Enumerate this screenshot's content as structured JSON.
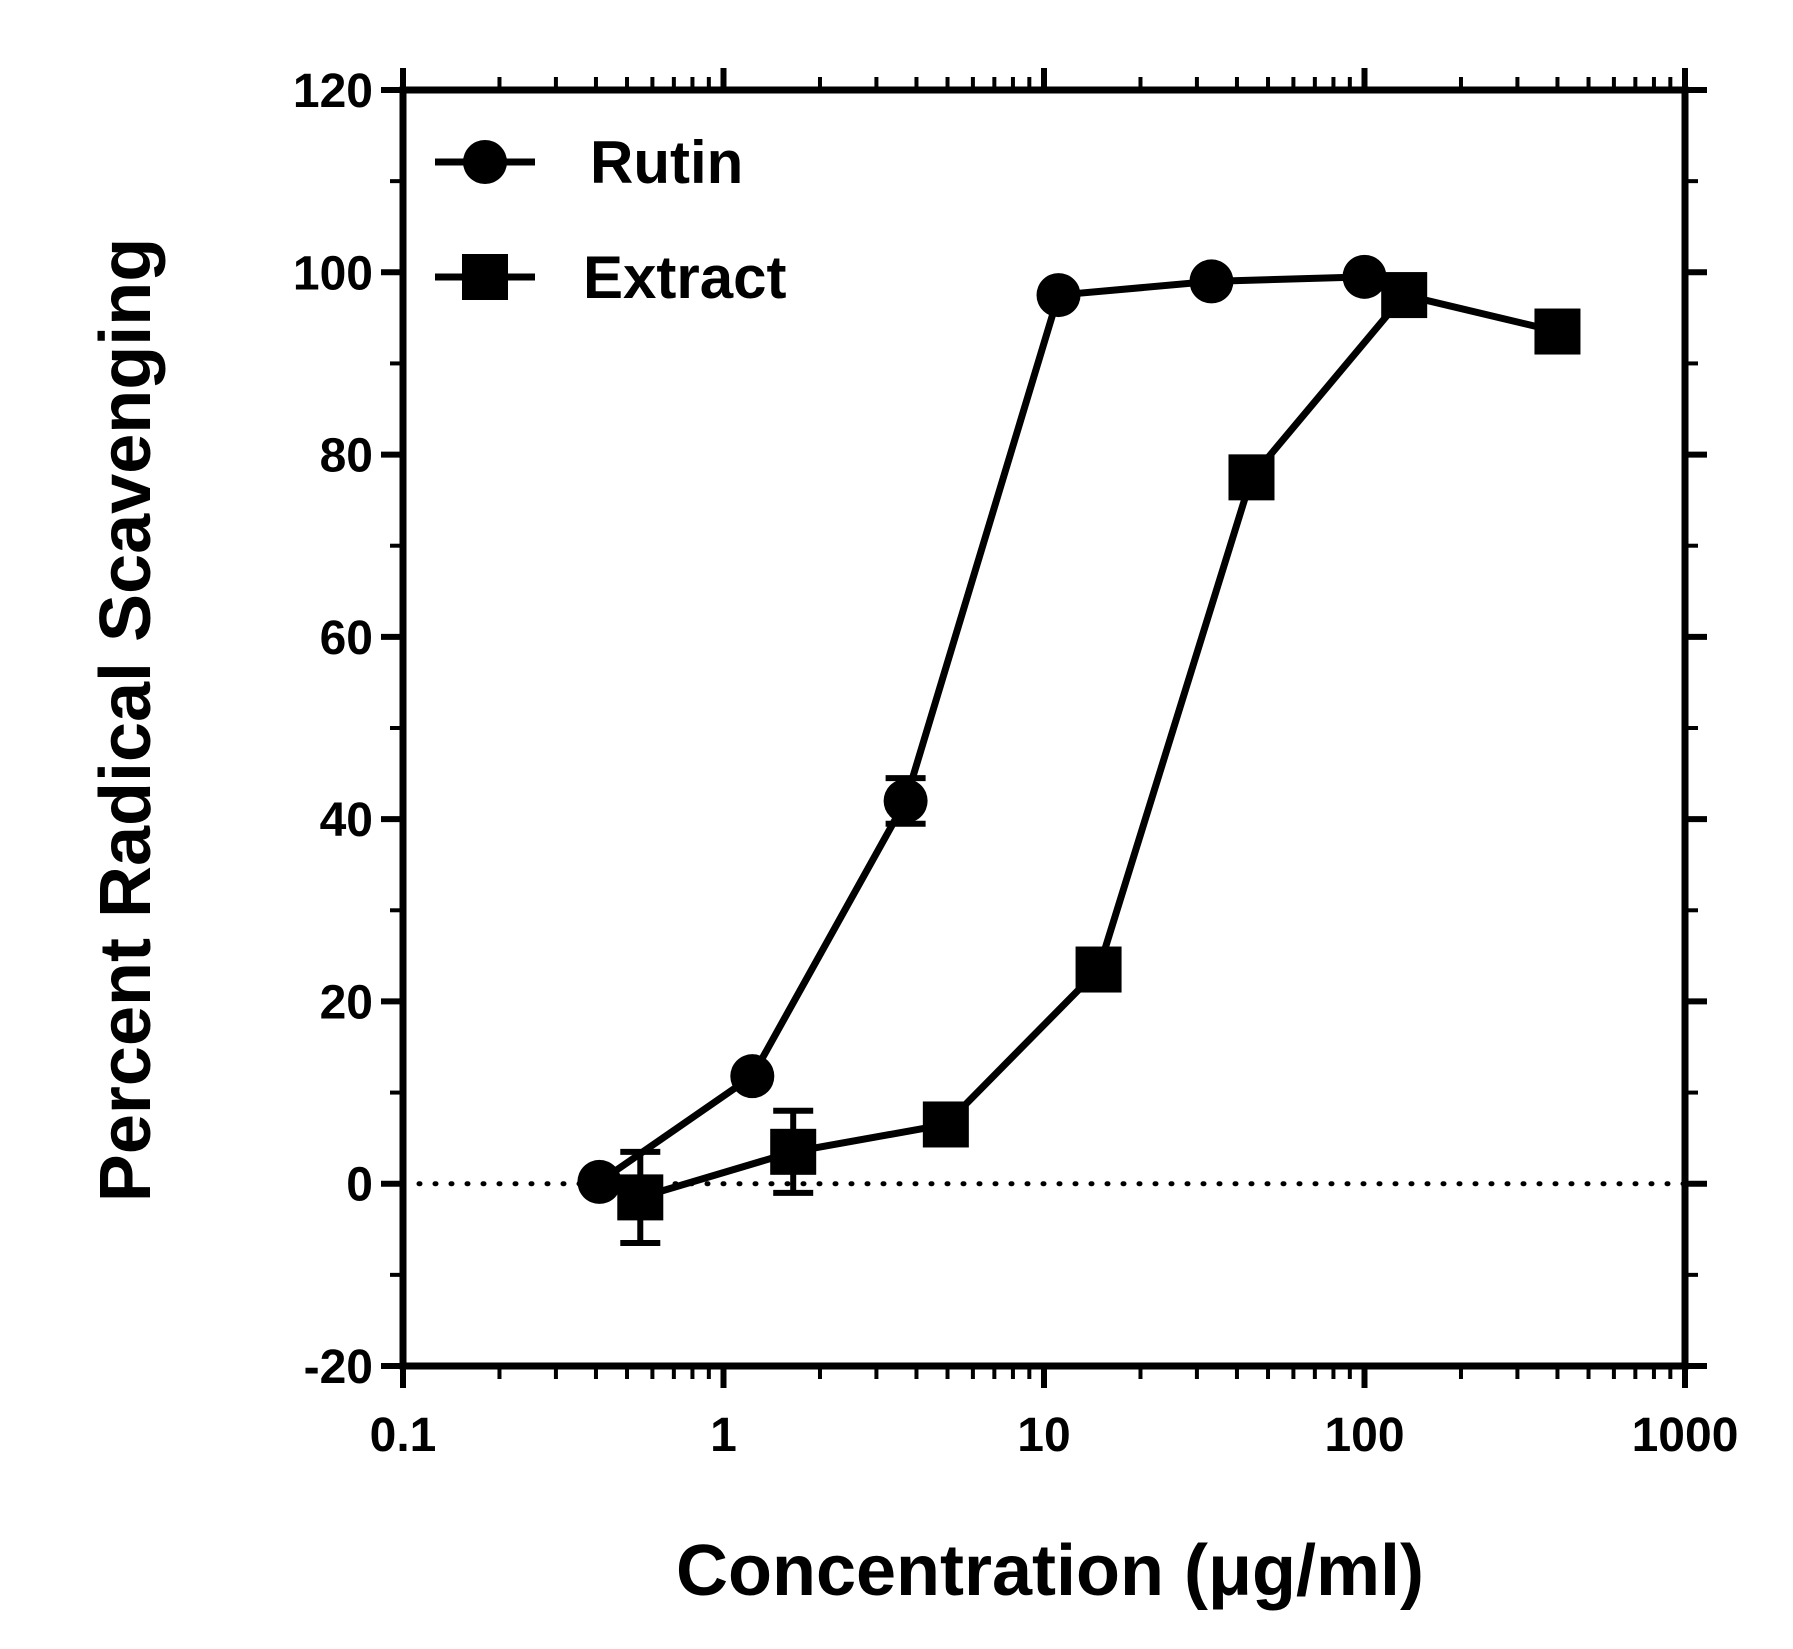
{
  "chart_data": {
    "type": "line",
    "xlabel": "Concentration (μg/ml)",
    "ylabel": "Percent Radical Scavenging",
    "x_scale": "log",
    "xlim": [
      0.1,
      1000
    ],
    "ylim": [
      -20,
      120
    ],
    "x_ticks": [
      "0.1",
      "1",
      "10",
      "100",
      "1000"
    ],
    "y_ticks": [
      "-20",
      "0",
      "20",
      "40",
      "60",
      "80",
      "100",
      "120"
    ],
    "legend_position": "top-left",
    "grid": false,
    "reference_line": {
      "y": 0,
      "style": "dotted"
    },
    "series": [
      {
        "name": "Rutin",
        "marker": "circle",
        "color": "#000000",
        "x": [
          0.41,
          1.23,
          3.7,
          11.1,
          33.3,
          100
        ],
        "y": [
          0.2,
          11.8,
          42.0,
          97.5,
          99.0,
          99.5
        ],
        "error": [
          0,
          0,
          2.5,
          0,
          0,
          0
        ]
      },
      {
        "name": "Extract",
        "marker": "square",
        "color": "#000000",
        "x": [
          0.55,
          1.65,
          4.94,
          14.8,
          44.4,
          133,
          400
        ],
        "y": [
          -1.5,
          3.5,
          6.5,
          23.5,
          77.5,
          97.5,
          93.5
        ],
        "error": [
          5.0,
          4.5,
          0,
          0,
          0,
          0,
          0
        ]
      }
    ]
  }
}
